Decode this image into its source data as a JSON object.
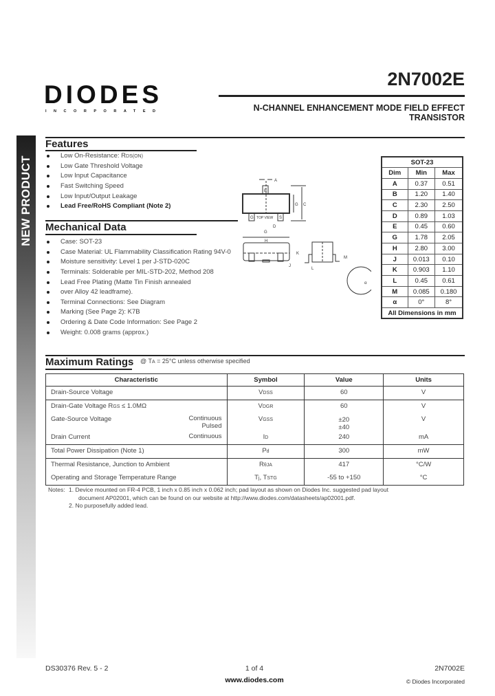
{
  "sidebar": {
    "label": "NEW PRODUCT"
  },
  "header": {
    "logo_text": "DIODES",
    "logo_sub": "INCORPORATED",
    "part_number": "2N7002E",
    "subtitle_line1": "N-CHANNEL ENHANCEMENT MODE FIELD EFFECT",
    "subtitle_line2": "TRANSISTOR"
  },
  "features": {
    "title": "Features",
    "items": [
      "Low On-Resistance: R",
      "Low Gate Threshold Voltage",
      "Low Input Capacitance",
      "Fast Switching Speed",
      "Low Input/Output Leakage",
      "Lead Free/RoHS Compliant (Note 2)"
    ],
    "rds_sub": "DS(ON)"
  },
  "mechanical": {
    "title": "Mechanical Data",
    "items": [
      "Case: SOT-23",
      "Case Material: UL Flammability Classification Rating 94V-0",
      "Moisture sensitivity: Level 1 per J-STD-020C",
      "Terminals: Solderable per MIL-STD-202, Method 208",
      "Lead Free Plating (Matte Tin Finish annealed",
      "over Alloy 42 leadframe).",
      "Terminal Connections: See Diagram",
      "Marking (See Page 2): K7B",
      "Ordering & Date Code Information: See Page 2",
      "Weight: 0.008 grams (approx.)"
    ]
  },
  "diagram": {
    "top_view": "TOP VIEW",
    "pins": [
      "G",
      "S",
      "D"
    ],
    "labels": [
      "A",
      "B",
      "C",
      "D",
      "G",
      "H",
      "J",
      "K",
      "L",
      "M",
      "α"
    ]
  },
  "dimensions": {
    "package": "SOT-23",
    "headers": [
      "Dim",
      "Min",
      "Max"
    ],
    "rows": [
      [
        "A",
        "0.37",
        "0.51"
      ],
      [
        "B",
        "1.20",
        "1.40"
      ],
      [
        "C",
        "2.30",
        "2.50"
      ],
      [
        "D",
        "0.89",
        "1.03"
      ],
      [
        "E",
        "0.45",
        "0.60"
      ],
      [
        "G",
        "1.78",
        "2.05"
      ],
      [
        "H",
        "2.80",
        "3.00"
      ],
      [
        "J",
        "0.013",
        "0.10"
      ],
      [
        "K",
        "0.903",
        "1.10"
      ],
      [
        "L",
        "0.45",
        "0.61"
      ],
      [
        "M",
        "0.085",
        "0.180"
      ],
      [
        "α",
        "0°",
        "8°"
      ]
    ],
    "footer": "All Dimensions in mm"
  },
  "max_ratings": {
    "title": "Maximum Ratings",
    "condition": "@ T",
    "condition_sub": "A",
    "condition_rest": " = 25°C unless otherwise specified",
    "headers": [
      "Characteristic",
      "Symbol",
      "Value",
      "Units"
    ],
    "rows": [
      {
        "char": "Drain-Source Voltage",
        "sym": "V",
        "sym_sub": "DSS",
        "value": "60",
        "unit": "V"
      },
      {
        "char": "Drain-Gate Voltage R",
        "char_sub": "GS",
        "char_rest": " ≤ 1.0MΩ",
        "sym": "V",
        "sym_sub": "DGR",
        "value": "60",
        "unit": "V"
      },
      {
        "char": "Gate-Source Voltage",
        "cond": "Continuous",
        "cond2": "Pulsed",
        "sym": "V",
        "sym_sub": "GSS",
        "value": "±20",
        "value2": "±40",
        "unit": "V"
      },
      {
        "char": "Drain Current",
        "cond": "Continuous",
        "sym": "I",
        "sym_sub": "D",
        "value": "240",
        "unit": "mA"
      },
      {
        "char": "Total Power Dissipation (Note 1)",
        "sym": "P",
        "sym_sub": "d",
        "value": "300",
        "unit": "mW"
      },
      {
        "char": "Thermal Resistance, Junction to Ambient",
        "sym": "R",
        "sym_sub": "θJA",
        "value": "417",
        "unit": "°C/W"
      },
      {
        "char": "Operating and Storage Temperature Range",
        "sym": "T",
        "sym_sub": "j",
        "sym_rest": ", T",
        "sym_sub2": "STG",
        "value": "-55 to +150",
        "unit": "°C"
      }
    ]
  },
  "notes": {
    "label": "Notes:",
    "items": [
      "1.  Device mounted on FR-4 PCB, 1 inch x 0.85 inch x 0.062 inch; pad layout as shown on Diodes Inc. suggested pad layout",
      "document AP02001, which can be found on our website at http://www.diodes.com/datasheets/ap02001.pdf.",
      "2.  No purposefully added lead."
    ]
  },
  "footer": {
    "doc": "DS30376 Rev. 5 - 2",
    "page": "1 of 4",
    "url": "www.diodes.com",
    "part": "2N7002E",
    "copyright": "© Diodes Incorporated"
  }
}
